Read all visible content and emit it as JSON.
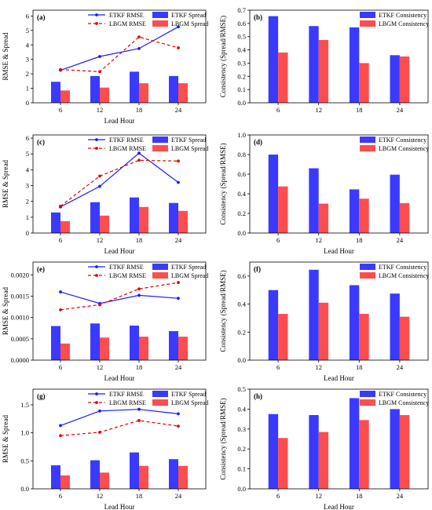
{
  "colors": {
    "etkf": "#3a3aff",
    "lbgm": "#ff4d4d",
    "etkf_line": "#1a1aff",
    "lbgm_line": "#e60000"
  },
  "chart_data": [
    {
      "panel": "(a)",
      "type": "bar+line",
      "x": [
        "6",
        "12",
        "18",
        "24"
      ],
      "xlabel": "Lead Hour",
      "ylabel": "RMSE & Spread",
      "ylim": [
        0,
        6.4
      ],
      "yticks": [
        "0",
        "1",
        "2",
        "3",
        "4",
        "5",
        "6"
      ],
      "legend_position": "top",
      "lines": [
        {
          "name": "ETKF RMSE",
          "values": [
            2.25,
            3.2,
            3.75,
            5.25
          ],
          "style": "solid",
          "color": "#1a1aff"
        },
        {
          "name": "LBGM RMSE",
          "values": [
            2.3,
            2.15,
            4.55,
            3.8
          ],
          "style": "dashed",
          "color": "#e60000"
        }
      ],
      "bars": [
        {
          "name": "ETKF Spread",
          "values": [
            1.45,
            1.85,
            2.15,
            1.85
          ],
          "color": "#3a3aff"
        },
        {
          "name": "LBGM Spread",
          "values": [
            0.85,
            1.05,
            1.35,
            1.35
          ],
          "color": "#ff4d4d"
        }
      ]
    },
    {
      "panel": "(b)",
      "type": "bar",
      "x": [
        "6",
        "12",
        "18",
        "24"
      ],
      "xlabel": "",
      "ylabel": "Consistency (Spread/RMSE)",
      "ylim": [
        0,
        0.7
      ],
      "yticks": [
        "0.0",
        "0.1",
        "0.2",
        "0.3",
        "0.4",
        "0.5",
        "0.6",
        "0.7"
      ],
      "legend_position": "top-right",
      "bars": [
        {
          "name": "ETKF Consistency",
          "values": [
            0.655,
            0.58,
            0.57,
            0.36
          ],
          "color": "#3a3aff"
        },
        {
          "name": "LBGM Consistency",
          "values": [
            0.38,
            0.475,
            0.3,
            0.35
          ],
          "color": "#ff4d4d"
        }
      ]
    },
    {
      "panel": "(c)",
      "type": "bar+line",
      "x": [
        "6",
        "12",
        "18",
        "24"
      ],
      "xlabel": "Lead Hour",
      "ylabel": "RMSE & Spread",
      "ylim": [
        0,
        6.2
      ],
      "yticks": [
        "0",
        "1",
        "2",
        "3",
        "4",
        "5",
        "6"
      ],
      "legend_position": "top",
      "lines": [
        {
          "name": "ETKF RMSE",
          "values": [
            1.65,
            2.95,
            5.05,
            3.2
          ],
          "style": "solid",
          "color": "#1a1aff"
        },
        {
          "name": "LBGM RMSE",
          "values": [
            1.7,
            3.6,
            4.6,
            4.55
          ],
          "style": "dashed",
          "color": "#e60000"
        }
      ],
      "bars": [
        {
          "name": "ETKF Spread",
          "values": [
            1.3,
            1.95,
            2.25,
            1.9
          ],
          "color": "#3a3aff"
        },
        {
          "name": "LBGM Spread",
          "values": [
            0.75,
            1.1,
            1.65,
            1.4
          ],
          "color": "#ff4d4d"
        }
      ]
    },
    {
      "panel": "(d)",
      "type": "bar",
      "x": [
        "6",
        "12",
        "18",
        "24"
      ],
      "xlabel": "Lead Hour",
      "ylabel": "Consistency (Spread/RMSE)",
      "ylim": [
        0,
        1.0
      ],
      "yticks": [
        "0.0",
        "0.2",
        "0.4",
        "0.6",
        "0.8",
        "1.0"
      ],
      "legend_position": "top-right",
      "bars": [
        {
          "name": "ETKF Consistency",
          "values": [
            0.8,
            0.66,
            0.445,
            0.595
          ],
          "color": "#3a3aff"
        },
        {
          "name": "LBGM Consistency",
          "values": [
            0.475,
            0.3,
            0.35,
            0.305
          ],
          "color": "#ff4d4d"
        }
      ]
    },
    {
      "panel": "(e)",
      "type": "bar+line",
      "x": [
        "6",
        "12",
        "18",
        "24"
      ],
      "xlabel": "Lead Hour",
      "ylabel": "RMSE & Spread",
      "ylim": [
        0,
        0.0023
      ],
      "yticks": [
        "0.0000",
        "0.0005",
        "0.0010",
        "0.0015",
        "0.0020"
      ],
      "legend_position": "top",
      "lines": [
        {
          "name": "ETKF RMSE",
          "values": [
            0.0016,
            0.00133,
            0.00152,
            0.00145
          ],
          "style": "solid",
          "color": "#1a1aff"
        },
        {
          "name": "LBGM RMSE",
          "values": [
            0.00118,
            0.0013,
            0.00167,
            0.00182
          ],
          "style": "dashed",
          "color": "#e60000"
        }
      ],
      "bars": [
        {
          "name": "ETKF Spread",
          "values": [
            0.0008,
            0.00086,
            0.00081,
            0.00068
          ],
          "color": "#3a3aff"
        },
        {
          "name": "LBGM Spread",
          "values": [
            0.00039,
            0.00053,
            0.00055,
            0.00055
          ],
          "color": "#ff4d4d"
        }
      ]
    },
    {
      "panel": "(f)",
      "type": "bar",
      "x": [
        "6",
        "12",
        "18",
        "24"
      ],
      "xlabel": "Lead Hour",
      "ylabel": "Consistency (Spread/RMSE)",
      "ylim": [
        0,
        0.7
      ],
      "yticks": [
        "0.0",
        "0.2",
        "0.4",
        "0.6"
      ],
      "legend_position": "top-right",
      "bars": [
        {
          "name": "ETKF Consistency",
          "values": [
            0.5,
            0.645,
            0.535,
            0.475
          ],
          "color": "#3a3aff"
        },
        {
          "name": "LBGM Consistency",
          "values": [
            0.33,
            0.41,
            0.33,
            0.31
          ],
          "color": "#ff4d4d"
        }
      ]
    },
    {
      "panel": "(g)",
      "type": "bar+line",
      "x": [
        "6",
        "12",
        "18",
        "24"
      ],
      "xlabel": "Lead Hour",
      "ylabel": "RMSE & Spread",
      "ylim": [
        0,
        1.78
      ],
      "yticks": [
        "0.0",
        "0.5",
        "1.0",
        "1.5"
      ],
      "legend_position": "top",
      "lines": [
        {
          "name": "ETKF RMSE",
          "values": [
            1.13,
            1.39,
            1.42,
            1.34
          ],
          "style": "solid",
          "color": "#1a1aff"
        },
        {
          "name": "LBGM RMSE",
          "values": [
            0.95,
            1.01,
            1.22,
            1.12
          ],
          "style": "dashed",
          "color": "#e60000"
        }
      ],
      "bars": [
        {
          "name": "ETKF Spread",
          "values": [
            0.42,
            0.51,
            0.65,
            0.53
          ],
          "color": "#3a3aff"
        },
        {
          "name": "LBGM Spread",
          "values": [
            0.24,
            0.29,
            0.41,
            0.41
          ],
          "color": "#ff4d4d"
        }
      ]
    },
    {
      "panel": "(h)",
      "type": "bar",
      "x": [
        "6",
        "12",
        "18",
        "24"
      ],
      "xlabel": "Lead Hour",
      "ylabel": "Consistency (Spread/RMSE)",
      "ylim": [
        0,
        0.5
      ],
      "yticks": [
        "0.0",
        "0.1",
        "0.2",
        "0.3",
        "0.4",
        "0.5"
      ],
      "legend_position": "top-right",
      "bars": [
        {
          "name": "ETKF Consistency",
          "values": [
            0.375,
            0.37,
            0.455,
            0.4
          ],
          "color": "#3a3aff"
        },
        {
          "name": "LBGM Consistency",
          "values": [
            0.255,
            0.285,
            0.345,
            0.37
          ],
          "color": "#ff4d4d"
        }
      ]
    }
  ]
}
